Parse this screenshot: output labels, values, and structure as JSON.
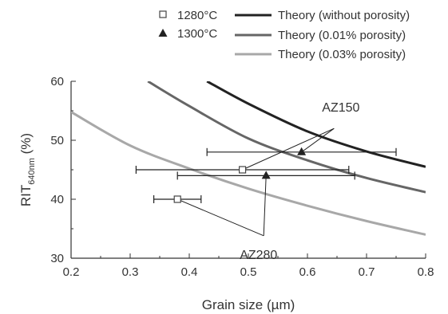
{
  "chart_data": {
    "type": "scatter",
    "title": "",
    "xlabel": "Grain size (µm)",
    "ylabel": {
      "main": "RIT",
      "sub": "640nm",
      "unit": " (%)"
    },
    "xlim": [
      0.2,
      0.8
    ],
    "ylim": [
      30,
      60
    ],
    "xticks": [
      "0.2",
      "0.3",
      "0.4",
      "0.5",
      "0.6",
      "0.7",
      "0.8"
    ],
    "yticks": [
      "30",
      "40",
      "50",
      "60"
    ],
    "grid": false,
    "legend_position": "top",
    "series": [
      {
        "name": "1280°C",
        "kind": "points",
        "marker": "open-square",
        "color": "#444444",
        "points": [
          {
            "x": 0.38,
            "y": 40,
            "xerr_low": 0.34,
            "xerr_high": 0.42
          },
          {
            "x": 0.49,
            "y": 45,
            "xerr_low": 0.31,
            "xerr_high": 0.67
          }
        ]
      },
      {
        "name": "1300°C",
        "kind": "points",
        "marker": "filled-triangle",
        "color": "#222222",
        "points": [
          {
            "x": 0.53,
            "y": 44,
            "xerr_low": 0.38,
            "xerr_high": 0.68
          },
          {
            "x": 0.59,
            "y": 48,
            "xerr_low": 0.43,
            "xerr_high": 0.75
          }
        ]
      },
      {
        "name": "Theory (without porosity)",
        "kind": "line",
        "color": "#222222",
        "points": [
          [
            0.43,
            60
          ],
          [
            0.5,
            56.2
          ],
          [
            0.6,
            51.5
          ],
          [
            0.7,
            48.1
          ],
          [
            0.8,
            45.5
          ]
        ]
      },
      {
        "name": "Theory (0.01% porosity)",
        "kind": "line",
        "color": "#666666",
        "points": [
          [
            0.33,
            60
          ],
          [
            0.4,
            55.8
          ],
          [
            0.5,
            50.3
          ],
          [
            0.6,
            46.6
          ],
          [
            0.7,
            43.6
          ],
          [
            0.8,
            41.2
          ]
        ]
      },
      {
        "name": "Theory (0.03% porosity)",
        "kind": "line",
        "color": "#a8a8a8",
        "points": [
          [
            0.2,
            54.8
          ],
          [
            0.3,
            49.1
          ],
          [
            0.4,
            45.2
          ],
          [
            0.5,
            41.8
          ],
          [
            0.6,
            38.9
          ],
          [
            0.7,
            36.3
          ],
          [
            0.8,
            34.0
          ]
        ]
      }
    ],
    "annotations": [
      {
        "text": "AZ150",
        "label_at": [
          0.645,
          52.0
        ],
        "targets": [
          [
            0.49,
            45
          ],
          [
            0.59,
            48
          ]
        ]
      },
      {
        "text": "AZ280",
        "label_at": [
          0.53,
          33.0
        ],
        "targets": [
          [
            0.38,
            40
          ],
          [
            0.53,
            44
          ]
        ]
      }
    ]
  }
}
